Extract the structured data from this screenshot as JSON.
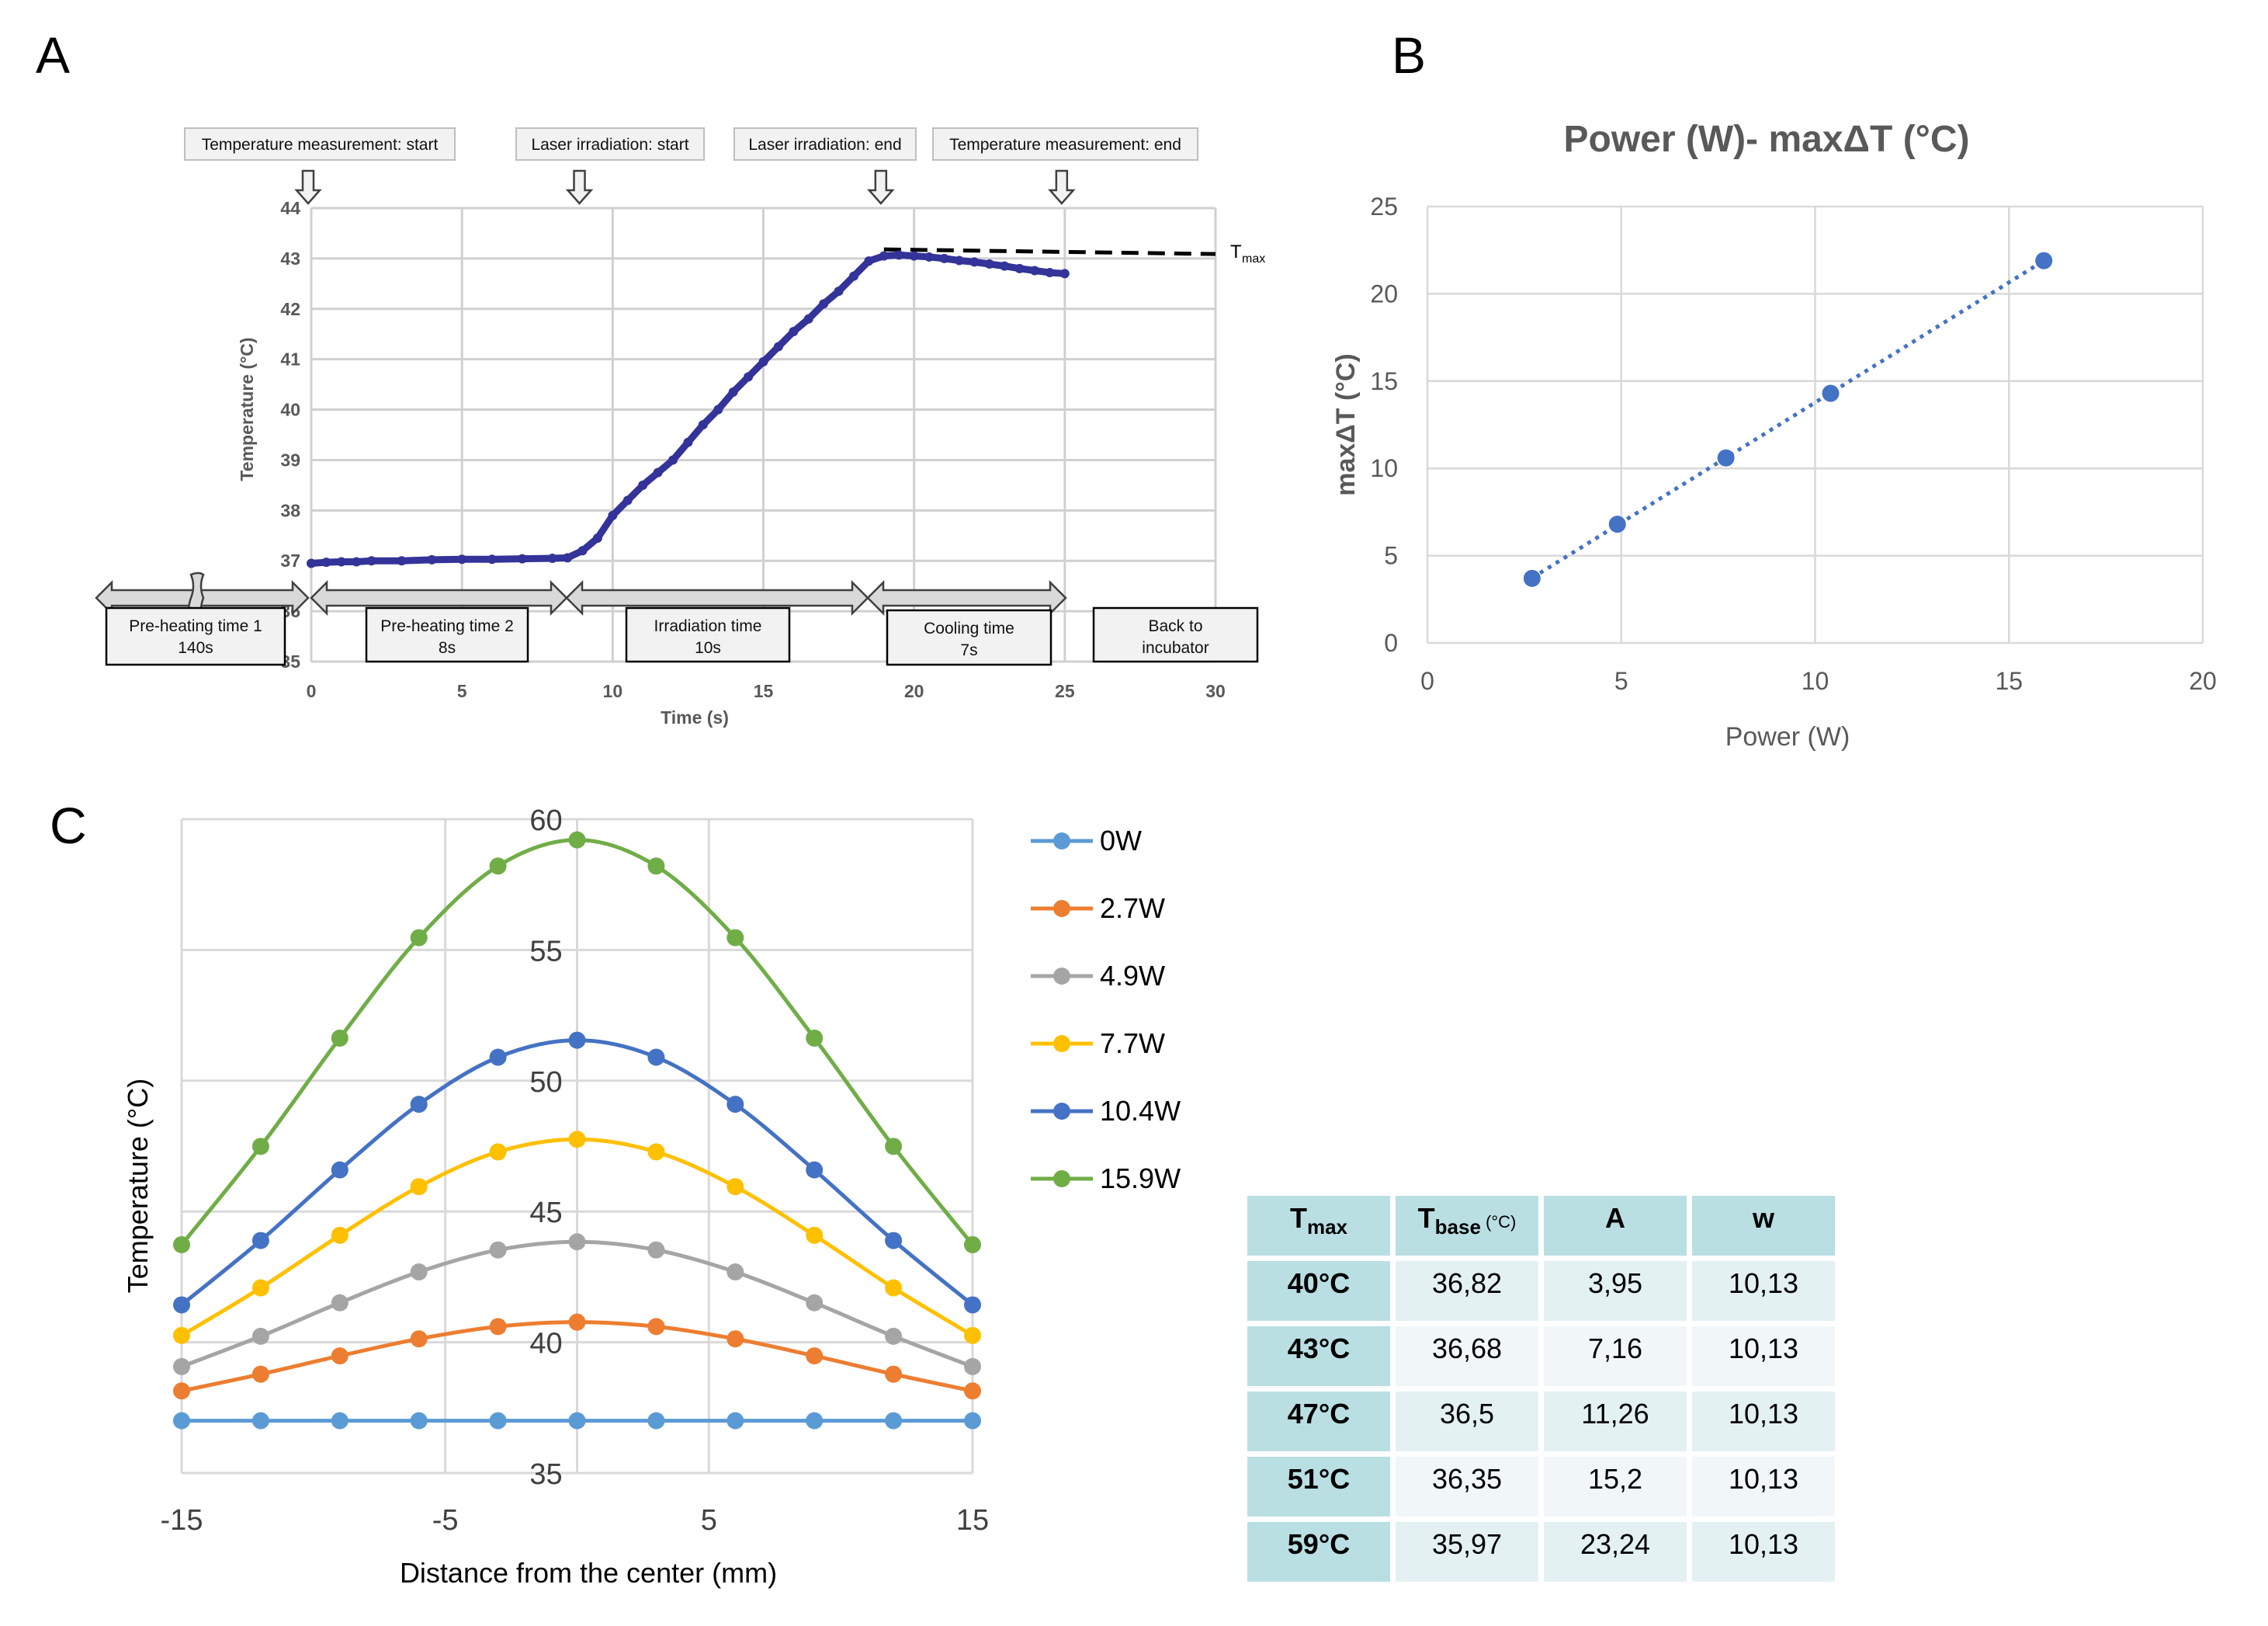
{
  "panels": {
    "a": "A",
    "b": "B",
    "c": "C"
  },
  "chart_data": [
    {
      "type": "line",
      "panel": "A",
      "xlabel": "Time (s)",
      "ylabel": "Temperature (°C)",
      "xlim": [
        0,
        30
      ],
      "ylim": [
        35,
        44
      ],
      "xticks": [
        "0",
        "5",
        "10",
        "15",
        "20",
        "25",
        "30"
      ],
      "yticks": [
        "35",
        "36",
        "37",
        "38",
        "39",
        "40",
        "41",
        "42",
        "43",
        "44"
      ],
      "grid": true,
      "color": "#333399",
      "x": [
        0,
        0.5,
        1,
        1.5,
        2,
        3,
        4,
        5,
        6,
        7,
        8,
        8.5,
        9,
        9.5,
        10,
        10.5,
        11,
        11.5,
        12,
        12.5,
        13,
        13.5,
        14,
        14.5,
        15,
        15.5,
        16,
        16.5,
        17,
        17.5,
        18,
        18.5,
        19,
        19.5,
        20,
        20.5,
        21,
        21.5,
        22,
        22.5,
        23,
        23.5,
        24,
        24.5,
        25
      ],
      "y": [
        36.95,
        36.97,
        36.98,
        36.98,
        37.0,
        37.0,
        37.02,
        37.03,
        37.03,
        37.04,
        37.05,
        37.06,
        37.2,
        37.45,
        37.9,
        38.2,
        38.5,
        38.75,
        39.0,
        39.35,
        39.7,
        40.0,
        40.35,
        40.65,
        40.95,
        41.25,
        41.55,
        41.8,
        42.1,
        42.35,
        42.65,
        42.95,
        43.05,
        43.07,
        43.05,
        43.03,
        43.0,
        42.96,
        42.93,
        42.89,
        42.85,
        42.8,
        42.76,
        42.72,
        42.7
      ],
      "tmax_line": {
        "value": 43.15,
        "from": 19,
        "to": 30,
        "label": "T",
        "label_sub": "max"
      },
      "events": [
        {
          "label": "Temperature measurement: start",
          "t": 0
        },
        {
          "label": "Laser irradiation:  start",
          "t": 9
        },
        {
          "label": "Laser irradiation:  end",
          "t": 19
        },
        {
          "label": "Temperature measurement: end",
          "t": 25
        }
      ],
      "phases": [
        {
          "line1": "Pre-heating time 1",
          "line2": "140s"
        },
        {
          "line1": "Pre-heating time 2",
          "line2": "8s"
        },
        {
          "line1": "Irradiation time",
          "line2": "10s"
        },
        {
          "line1": "Cooling time",
          "line2": "7s"
        },
        {
          "line1": "Back to",
          "line2": "incubator"
        }
      ]
    },
    {
      "type": "scatter",
      "panel": "B",
      "title": "Power (W)- maxΔT (°C)",
      "xlabel": "Power (W)",
      "ylabel": "maxΔT (°C)",
      "xlim": [
        0,
        20
      ],
      "ylim": [
        0,
        25
      ],
      "xticks": [
        "0",
        "5",
        "10",
        "15",
        "20"
      ],
      "yticks": [
        "0",
        "5",
        "10",
        "15",
        "20",
        "25"
      ],
      "grid": true,
      "trendline": "linear-dotted",
      "color": "#4472c4",
      "x": [
        2.7,
        4.9,
        7.7,
        10.4,
        15.9
      ],
      "y": [
        3.7,
        6.8,
        10.6,
        14.3,
        21.9
      ]
    },
    {
      "type": "line",
      "panel": "C",
      "xlabel": "Distance from the center (mm)",
      "ylabel": "Temperature (°C)",
      "xlim": [
        -15,
        15
      ],
      "ylim": [
        35,
        60
      ],
      "xticks": [
        "-15",
        "-5",
        "5",
        "15"
      ],
      "yticks": [
        "35",
        "40",
        "45",
        "50",
        "55",
        "60"
      ],
      "grid": true,
      "legend": "right",
      "x": [
        -15,
        -12,
        -9,
        -6,
        -3,
        0,
        3,
        6,
        9,
        12,
        15
      ],
      "series": [
        {
          "name": "0W",
          "color": "#5b9bd5",
          "values": [
            37.0,
            37.0,
            37.0,
            37.0,
            37.0,
            37.0,
            37.0,
            37.0,
            37.0,
            37.0,
            37.0
          ]
        },
        {
          "name": "2.7W",
          "color": "#ed7d31",
          "values": [
            38.14,
            38.78,
            39.48,
            40.13,
            40.6,
            40.77,
            40.6,
            40.13,
            39.48,
            38.78,
            38.14
          ]
        },
        {
          "name": "4.9W",
          "color": "#a5a5a5",
          "values": [
            39.07,
            40.23,
            41.51,
            42.69,
            43.53,
            43.84,
            43.53,
            42.69,
            41.51,
            40.23,
            39.07
          ]
        },
        {
          "name": "7.7W",
          "color": "#ffc000",
          "values": [
            40.26,
            42.08,
            44.09,
            45.95,
            47.28,
            47.76,
            47.28,
            45.95,
            44.09,
            42.08,
            40.26
          ]
        },
        {
          "name": "10.4W",
          "color": "#4472c4",
          "values": [
            41.43,
            43.89,
            46.59,
            49.1,
            50.9,
            51.55,
            50.9,
            49.1,
            46.59,
            43.89,
            41.43
          ]
        },
        {
          "name": "15.9W",
          "color": "#70ad47",
          "values": [
            43.73,
            47.49,
            51.63,
            55.47,
            58.21,
            59.21,
            58.21,
            55.47,
            51.63,
            47.49,
            43.73
          ]
        }
      ]
    },
    {
      "type": "table",
      "panel": "C-table",
      "header": {
        "tmax": "T",
        "tmax_sub": "max",
        "tbase": "T",
        "tbase_sub": "base",
        "tbase_unit": " (°C)",
        "a": "A",
        "w": "w"
      },
      "rows": [
        [
          "40°C",
          "36,82",
          "3,95",
          "10,13"
        ],
        [
          "43°C",
          "36,68",
          "7,16",
          "10,13"
        ],
        [
          "47°C",
          "36,5",
          "11,26",
          "10,13"
        ],
        [
          "51°C",
          "36,35",
          "15,2",
          "10,13"
        ],
        [
          "59°C",
          "35,97",
          "23,24",
          "10,13"
        ]
      ]
    }
  ]
}
